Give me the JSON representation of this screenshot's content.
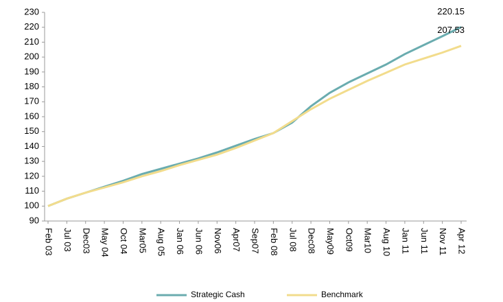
{
  "chart_data": {
    "type": "line",
    "categories": [
      "Feb 03",
      "Jul 03",
      "Dec03",
      "May 04",
      "Oct 04",
      "Mar05",
      "Aug 05",
      "Jan 06",
      "Jun 06",
      "Nov06",
      "Apr07",
      "Sep07",
      "Feb 08",
      "Jul 08",
      "Dec08",
      "May09",
      "Oct09",
      "Mar10",
      "Aug 10",
      "Jan 11",
      "Jun 11",
      "Nov 11",
      "Apr 12"
    ],
    "series": [
      {
        "name": "Strategic Cash",
        "color": "#6aacaf",
        "values": [
          100,
          105,
          109,
          113,
          117,
          121.5,
          125,
          128.5,
          132,
          136,
          140.5,
          145,
          149,
          156,
          167,
          176,
          183,
          189,
          195,
          202,
          208,
          214,
          220.15
        ]
      },
      {
        "name": "Benchmark",
        "color": "#f2dc8c",
        "values": [
          100,
          105,
          109,
          112.5,
          116,
          120,
          123.5,
          127.5,
          131,
          134.5,
          139,
          144,
          149,
          157,
          165,
          172,
          178,
          184,
          189.5,
          195,
          199,
          203,
          207.53
        ]
      }
    ],
    "ylim": [
      90,
      230
    ],
    "yticks": [
      90,
      100,
      110,
      120,
      130,
      140,
      150,
      160,
      170,
      180,
      190,
      200,
      210,
      220,
      230
    ],
    "grid": false,
    "legend": "bottom"
  }
}
